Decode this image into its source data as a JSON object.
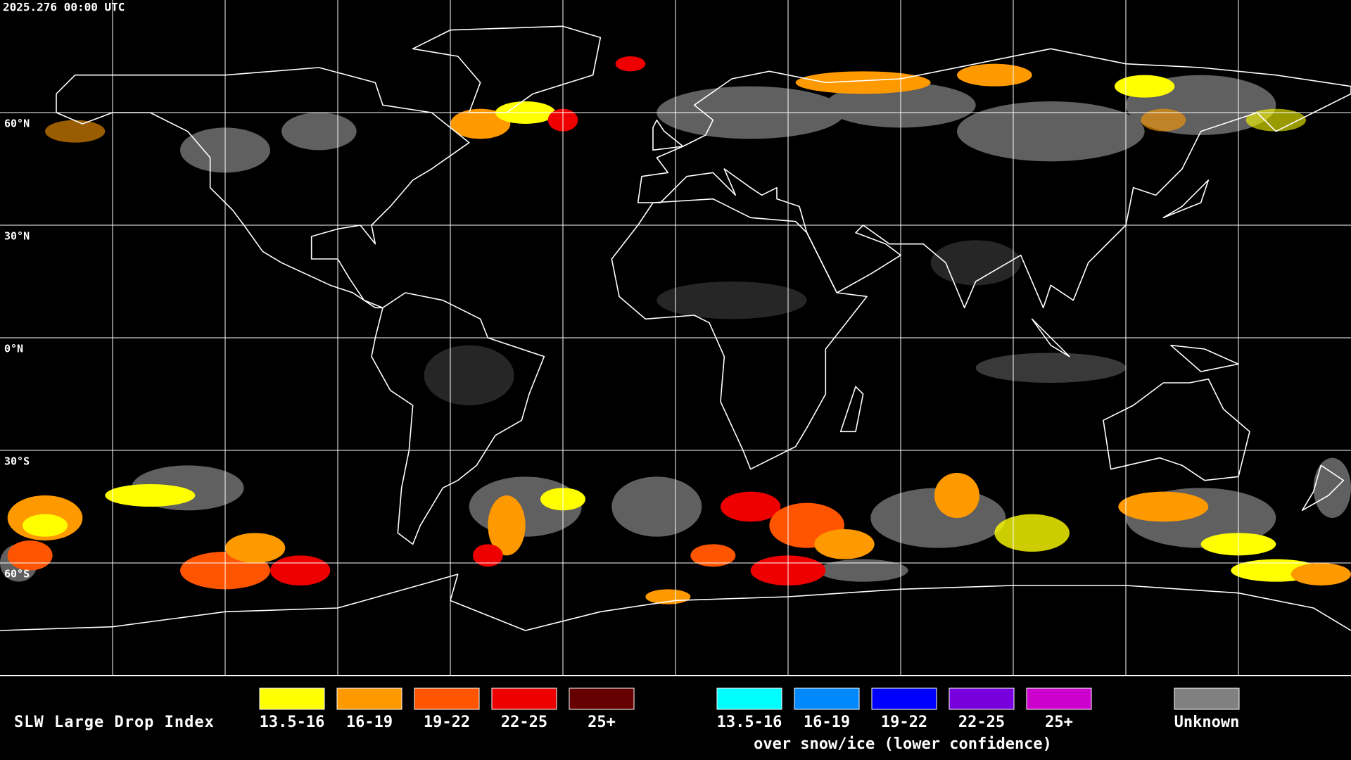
{
  "header": {
    "timestamp": "2025.276 00:00 UTC"
  },
  "map": {
    "latitude_labels": [
      "60°N",
      "30°N",
      "0°N",
      "30°S",
      "60°S"
    ]
  },
  "legend": {
    "title": "SLW Large Drop Index",
    "items": [
      {
        "label": "13.5-16",
        "color": "#ffff00"
      },
      {
        "label": "16-19",
        "color": "#ff9900"
      },
      {
        "label": "19-22",
        "color": "#ff5500"
      },
      {
        "label": "22-25",
        "color": "#ee0000"
      },
      {
        "label": "25+",
        "color": "#660000"
      }
    ],
    "snow_ice_items": [
      {
        "label": "13.5-16",
        "color": "#00ffff"
      },
      {
        "label": "16-19",
        "color": "#0088ff"
      },
      {
        "label": "19-22",
        "color": "#0000ff"
      },
      {
        "label": "22-25",
        "color": "#7700dd"
      },
      {
        "label": "25+",
        "color": "#cc00cc"
      }
    ],
    "snow_ice_note": "over snow/ice (lower confidence)",
    "unknown": {
      "label": "Unknown",
      "color": "#808080"
    }
  }
}
